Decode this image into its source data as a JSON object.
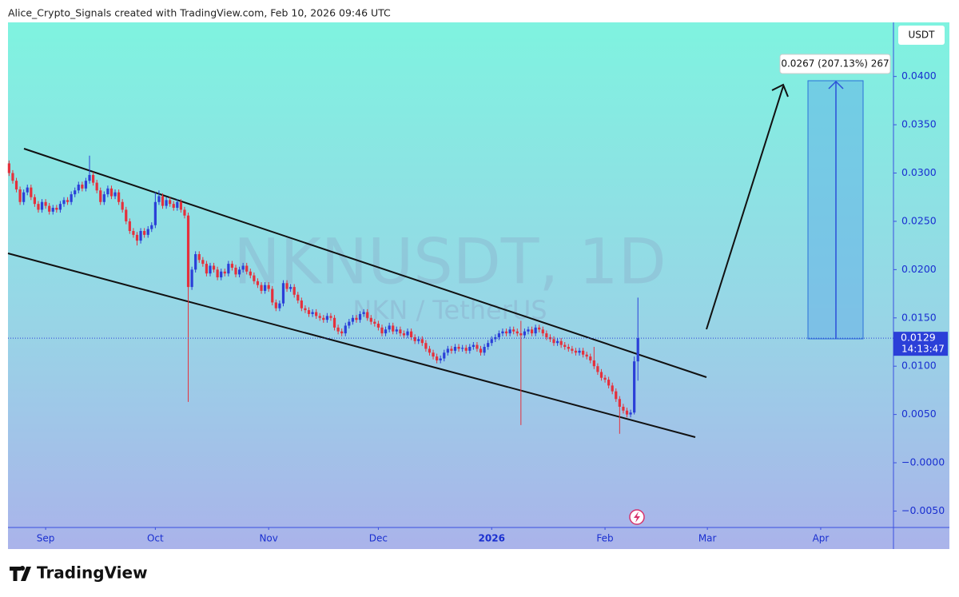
{
  "chart_data": {
    "type": "candlestick",
    "title": "Alice_Crypto_Signals created with TradingView.com, Feb 10, 2026 09:46 UTC",
    "watermark": "NKNUSDT, 1D",
    "watermark_subtitle": "NKN / TetherUS",
    "currency": "USDT",
    "countdown": "14:13:47",
    "measure_label": "0.0267 (207.13%) 267",
    "logo": "TradingView",
    "up_color": "#2b3fd8",
    "down_color": "#e5303c",
    "ylim": [
      -0.0067,
      0.0456
    ],
    "yticks": [
      {
        "value": -0.005,
        "label": "−0.0050"
      },
      {
        "value": 0,
        "label": "−0.0000"
      },
      {
        "value": 0.005,
        "label": "0.0050"
      },
      {
        "value": 0.01,
        "label": "0.0100"
      },
      {
        "value": 0.015,
        "label": "0.0150"
      },
      {
        "value": 0.02,
        "label": "0.0200"
      },
      {
        "value": 0.025,
        "label": "0.0250"
      },
      {
        "value": 0.03,
        "label": "0.0300"
      },
      {
        "value": 0.035,
        "label": "0.0350"
      },
      {
        "value": 0.04,
        "label": "0.0400"
      }
    ],
    "xlim": [
      -10.3,
      231.9
    ],
    "xticks": [
      {
        "value": 0,
        "label": "Sep"
      },
      {
        "value": 30,
        "label": "Oct"
      },
      {
        "value": 61,
        "label": "Nov"
      },
      {
        "value": 91,
        "label": "Dec"
      },
      {
        "value": 122,
        "label": "2026"
      },
      {
        "value": 153,
        "label": "Feb"
      },
      {
        "value": 181,
        "label": "Mar"
      },
      {
        "value": 212,
        "label": "Apr"
      }
    ],
    "x": [
      -10,
      -9,
      -8,
      -7,
      -6,
      -5,
      -4,
      -3,
      -2,
      -1,
      0,
      1,
      2,
      3,
      4,
      5,
      6,
      7,
      8,
      9,
      10,
      11,
      12,
      13,
      14,
      15,
      16,
      17,
      18,
      19,
      20,
      21,
      22,
      23,
      24,
      25,
      26,
      27,
      28,
      29,
      30,
      31,
      32,
      33,
      34,
      35,
      36,
      37,
      38,
      39,
      40,
      41,
      42,
      43,
      44,
      45,
      46,
      47,
      48,
      49,
      50,
      51,
      52,
      53,
      54,
      55,
      56,
      57,
      58,
      59,
      60,
      61,
      62,
      63,
      64,
      65,
      66,
      67,
      68,
      69,
      70,
      71,
      72,
      73,
      74,
      75,
      76,
      77,
      78,
      79,
      80,
      81,
      82,
      83,
      84,
      85,
      86,
      87,
      88,
      89,
      90,
      91,
      92,
      93,
      94,
      95,
      96,
      97,
      98,
      99,
      100,
      101,
      102,
      103,
      104,
      105,
      106,
      107,
      108,
      109,
      110,
      111,
      112,
      113,
      114,
      115,
      116,
      117,
      118,
      119,
      120,
      121,
      122,
      123,
      124,
      125,
      126,
      127,
      128,
      129,
      130,
      131,
      132,
      133,
      134,
      135,
      136,
      137,
      138,
      139,
      140,
      141,
      142,
      143,
      144,
      145,
      146,
      147,
      148,
      149,
      150,
      151,
      152,
      153,
      154,
      155,
      156,
      157,
      158,
      159,
      160,
      161,
      162
    ],
    "ohlc": [
      [
        0.031,
        0.0313,
        0.0297,
        0.03
      ],
      [
        0.03,
        0.0303,
        0.0289,
        0.0292
      ],
      [
        0.0292,
        0.0295,
        0.028,
        0.0283
      ],
      [
        0.0283,
        0.0286,
        0.0267,
        0.027
      ],
      [
        0.027,
        0.0283,
        0.0267,
        0.028
      ],
      [
        0.028,
        0.0288,
        0.0277,
        0.0285
      ],
      [
        0.0285,
        0.0288,
        0.0272,
        0.0275
      ],
      [
        0.0275,
        0.0278,
        0.0265,
        0.0268
      ],
      [
        0.0268,
        0.0271,
        0.0259,
        0.0262
      ],
      [
        0.0262,
        0.0273,
        0.0259,
        0.027
      ],
      [
        0.027,
        0.0273,
        0.0263,
        0.0266
      ],
      [
        0.0266,
        0.0269,
        0.0257,
        0.026
      ],
      [
        0.026,
        0.0267,
        0.0257,
        0.0264
      ],
      [
        0.0264,
        0.0267,
        0.0259,
        0.0262
      ],
      [
        0.0262,
        0.0271,
        0.0259,
        0.0268
      ],
      [
        0.0268,
        0.0275,
        0.0265,
        0.0272
      ],
      [
        0.0272,
        0.0275,
        0.0267,
        0.027
      ],
      [
        0.027,
        0.0281,
        0.0267,
        0.0278
      ],
      [
        0.0278,
        0.0285,
        0.0275,
        0.0282
      ],
      [
        0.0282,
        0.0291,
        0.0279,
        0.0288
      ],
      [
        0.0288,
        0.0291,
        0.0281,
        0.0284
      ],
      [
        0.0284,
        0.0295,
        0.0281,
        0.0292
      ],
      [
        0.0292,
        0.0318,
        0.0289,
        0.0298
      ],
      [
        0.0298,
        0.0301,
        0.0287,
        0.029
      ],
      [
        0.029,
        0.0293,
        0.0279,
        0.0282
      ],
      [
        0.0282,
        0.0285,
        0.0267,
        0.027
      ],
      [
        0.027,
        0.0281,
        0.0267,
        0.0278
      ],
      [
        0.0278,
        0.0287,
        0.0275,
        0.0284
      ],
      [
        0.0284,
        0.0287,
        0.0273,
        0.0276
      ],
      [
        0.0276,
        0.0283,
        0.0273,
        0.028
      ],
      [
        0.028,
        0.0283,
        0.0267,
        0.027
      ],
      [
        0.027,
        0.0273,
        0.0259,
        0.0262
      ],
      [
        0.0262,
        0.0265,
        0.0247,
        0.025
      ],
      [
        0.025,
        0.0253,
        0.0237,
        0.024
      ],
      [
        0.024,
        0.0243,
        0.0233,
        0.0236
      ],
      [
        0.0236,
        0.0239,
        0.0225,
        0.023
      ],
      [
        0.023,
        0.0243,
        0.0227,
        0.024
      ],
      [
        0.024,
        0.0243,
        0.0233,
        0.0236
      ],
      [
        0.0236,
        0.0245,
        0.0233,
        0.0242
      ],
      [
        0.0242,
        0.0249,
        0.0239,
        0.0246
      ],
      [
        0.0246,
        0.028,
        0.0243,
        0.027
      ],
      [
        0.027,
        0.0282,
        0.0267,
        0.0276
      ],
      [
        0.0276,
        0.0279,
        0.0263,
        0.0266
      ],
      [
        0.0266,
        0.0275,
        0.0263,
        0.0272
      ],
      [
        0.0272,
        0.0275,
        0.0265,
        0.0268
      ],
      [
        0.0268,
        0.0271,
        0.0261,
        0.0264
      ],
      [
        0.0264,
        0.0273,
        0.0261,
        0.027
      ],
      [
        0.027,
        0.0273,
        0.0259,
        0.0262
      ],
      [
        0.0262,
        0.0265,
        0.0253,
        0.0256
      ],
      [
        0.0256,
        0.0259,
        0.0063,
        0.0182
      ],
      [
        0.0182,
        0.0203,
        0.0179,
        0.02
      ],
      [
        0.02,
        0.0219,
        0.0197,
        0.0216
      ],
      [
        0.0216,
        0.0219,
        0.0207,
        0.021
      ],
      [
        0.021,
        0.0213,
        0.0203,
        0.0206
      ],
      [
        0.0206,
        0.0209,
        0.0193,
        0.0196
      ],
      [
        0.0196,
        0.0207,
        0.0193,
        0.0204
      ],
      [
        0.0204,
        0.0207,
        0.0197,
        0.02
      ],
      [
        0.02,
        0.0203,
        0.0189,
        0.0192
      ],
      [
        0.0192,
        0.0201,
        0.0189,
        0.0198
      ],
      [
        0.0198,
        0.0201,
        0.0193,
        0.0196
      ],
      [
        0.0196,
        0.0209,
        0.0193,
        0.0206
      ],
      [
        0.0206,
        0.0209,
        0.0199,
        0.0202
      ],
      [
        0.0202,
        0.0205,
        0.0192,
        0.0195
      ],
      [
        0.0195,
        0.0203,
        0.0192,
        0.02
      ],
      [
        0.02,
        0.0207,
        0.0197,
        0.0204
      ],
      [
        0.0204,
        0.0207,
        0.0195,
        0.0198
      ],
      [
        0.0198,
        0.0201,
        0.0191,
        0.0194
      ],
      [
        0.0194,
        0.0197,
        0.0185,
        0.0188
      ],
      [
        0.0188,
        0.0191,
        0.0181,
        0.0184
      ],
      [
        0.0184,
        0.0187,
        0.0175,
        0.0178
      ],
      [
        0.0178,
        0.0187,
        0.0175,
        0.0184
      ],
      [
        0.0184,
        0.0187,
        0.0177,
        0.018
      ],
      [
        0.018,
        0.0183,
        0.0163,
        0.0166
      ],
      [
        0.0166,
        0.0169,
        0.0157,
        0.016
      ],
      [
        0.016,
        0.0168,
        0.0157,
        0.0165
      ],
      [
        0.0165,
        0.0189,
        0.0162,
        0.0186
      ],
      [
        0.0186,
        0.0189,
        0.0177,
        0.018
      ],
      [
        0.018,
        0.0185,
        0.0177,
        0.0182
      ],
      [
        0.0182,
        0.0185,
        0.0171,
        0.0174
      ],
      [
        0.0174,
        0.0177,
        0.0165,
        0.0168
      ],
      [
        0.0168,
        0.0171,
        0.0157,
        0.016
      ],
      [
        0.016,
        0.0163,
        0.0155,
        0.0158
      ],
      [
        0.0158,
        0.0161,
        0.0151,
        0.0154
      ],
      [
        0.0154,
        0.0159,
        0.0151,
        0.0156
      ],
      [
        0.0156,
        0.0159,
        0.0149,
        0.0152
      ],
      [
        0.0152,
        0.0155,
        0.0147,
        0.015
      ],
      [
        0.015,
        0.0153,
        0.0145,
        0.0148
      ],
      [
        0.0148,
        0.0155,
        0.0145,
        0.0152
      ],
      [
        0.0152,
        0.0155,
        0.0147,
        0.015
      ],
      [
        0.015,
        0.0153,
        0.0137,
        0.014
      ],
      [
        0.014,
        0.0143,
        0.0133,
        0.0136
      ],
      [
        0.0136,
        0.0139,
        0.0131,
        0.0134
      ],
      [
        0.0134,
        0.0145,
        0.0131,
        0.0142
      ],
      [
        0.0142,
        0.0149,
        0.0139,
        0.0146
      ],
      [
        0.0146,
        0.0153,
        0.0143,
        0.015
      ],
      [
        0.015,
        0.0153,
        0.0145,
        0.0148
      ],
      [
        0.0148,
        0.0157,
        0.0145,
        0.0154
      ],
      [
        0.0154,
        0.0159,
        0.0151,
        0.0156
      ],
      [
        0.0156,
        0.0159,
        0.0147,
        0.015
      ],
      [
        0.015,
        0.0153,
        0.0143,
        0.0146
      ],
      [
        0.0146,
        0.0149,
        0.0141,
        0.0144
      ],
      [
        0.0144,
        0.0147,
        0.0137,
        0.014
      ],
      [
        0.014,
        0.0143,
        0.0131,
        0.0134
      ],
      [
        0.0134,
        0.0141,
        0.0131,
        0.0138
      ],
      [
        0.0138,
        0.0145,
        0.0135,
        0.0142
      ],
      [
        0.0142,
        0.0145,
        0.0133,
        0.0136
      ],
      [
        0.0136,
        0.0141,
        0.0133,
        0.0138
      ],
      [
        0.0138,
        0.0141,
        0.0131,
        0.0134
      ],
      [
        0.0134,
        0.0137,
        0.0129,
        0.0132
      ],
      [
        0.0132,
        0.0139,
        0.0129,
        0.0136
      ],
      [
        0.0136,
        0.0139,
        0.0127,
        0.013
      ],
      [
        0.013,
        0.0133,
        0.0123,
        0.0126
      ],
      [
        0.0126,
        0.0131,
        0.0123,
        0.0128
      ],
      [
        0.0128,
        0.0131,
        0.0121,
        0.0124
      ],
      [
        0.0124,
        0.0127,
        0.0115,
        0.0118
      ],
      [
        0.0118,
        0.0121,
        0.0111,
        0.0114
      ],
      [
        0.0114,
        0.0117,
        0.0107,
        0.011
      ],
      [
        0.011,
        0.0113,
        0.0103,
        0.0106
      ],
      [
        0.0106,
        0.0111,
        0.0103,
        0.0108
      ],
      [
        0.0108,
        0.0117,
        0.0105,
        0.0114
      ],
      [
        0.0114,
        0.0121,
        0.0111,
        0.0118
      ],
      [
        0.0118,
        0.0121,
        0.0113,
        0.0116
      ],
      [
        0.0116,
        0.0123,
        0.0113,
        0.012
      ],
      [
        0.012,
        0.0123,
        0.0115,
        0.0118
      ],
      [
        0.0118,
        0.0122,
        0.0115,
        0.0119
      ],
      [
        0.0119,
        0.0122,
        0.0113,
        0.0116
      ],
      [
        0.0116,
        0.0123,
        0.0113,
        0.012
      ],
      [
        0.012,
        0.0125,
        0.0117,
        0.0122
      ],
      [
        0.0122,
        0.0125,
        0.0115,
        0.0118
      ],
      [
        0.0118,
        0.0121,
        0.0111,
        0.0114
      ],
      [
        0.0114,
        0.0123,
        0.0111,
        0.012
      ],
      [
        0.012,
        0.0127,
        0.0117,
        0.0124
      ],
      [
        0.0124,
        0.0131,
        0.0121,
        0.0128
      ],
      [
        0.0128,
        0.0133,
        0.0125,
        0.013
      ],
      [
        0.013,
        0.0137,
        0.0127,
        0.0134
      ],
      [
        0.0134,
        0.0139,
        0.0131,
        0.0136
      ],
      [
        0.0136,
        0.0139,
        0.0131,
        0.0134
      ],
      [
        0.0134,
        0.0141,
        0.0131,
        0.0138
      ],
      [
        0.0138,
        0.0141,
        0.0133,
        0.0136
      ],
      [
        0.0136,
        0.0139,
        0.0131,
        0.0134
      ],
      [
        0.0134,
        0.0147,
        0.0039,
        0.0132
      ],
      [
        0.0132,
        0.0139,
        0.0129,
        0.0136
      ],
      [
        0.0136,
        0.0141,
        0.0133,
        0.0138
      ],
      [
        0.0138,
        0.0141,
        0.0131,
        0.0134
      ],
      [
        0.0134,
        0.0143,
        0.0131,
        0.014
      ],
      [
        0.014,
        0.0143,
        0.0135,
        0.0138
      ],
      [
        0.0138,
        0.0141,
        0.0131,
        0.0134
      ],
      [
        0.0134,
        0.0137,
        0.0127,
        0.013
      ],
      [
        0.013,
        0.0133,
        0.0125,
        0.0128
      ],
      [
        0.0128,
        0.0131,
        0.0121,
        0.0124
      ],
      [
        0.0124,
        0.0129,
        0.0121,
        0.0126
      ],
      [
        0.0126,
        0.0129,
        0.0119,
        0.0122
      ],
      [
        0.0122,
        0.0125,
        0.0117,
        0.012
      ],
      [
        0.012,
        0.0123,
        0.0115,
        0.0118
      ],
      [
        0.0118,
        0.0121,
        0.0113,
        0.0116
      ],
      [
        0.0116,
        0.0119,
        0.0111,
        0.0114
      ],
      [
        0.0114,
        0.0119,
        0.0111,
        0.0116
      ],
      [
        0.0116,
        0.0119,
        0.0109,
        0.0112
      ],
      [
        0.0112,
        0.0115,
        0.0107,
        0.011
      ],
      [
        0.011,
        0.0113,
        0.0103,
        0.0106
      ],
      [
        0.0106,
        0.012,
        0.0097,
        0.01
      ],
      [
        0.01,
        0.0103,
        0.0091,
        0.0094
      ],
      [
        0.0094,
        0.0097,
        0.0085,
        0.0088
      ],
      [
        0.0088,
        0.0091,
        0.0083,
        0.0086
      ],
      [
        0.0086,
        0.0089,
        0.0077,
        0.008
      ],
      [
        0.008,
        0.0083,
        0.0071,
        0.0074
      ],
      [
        0.0074,
        0.0077,
        0.0063,
        0.0066
      ],
      [
        0.0066,
        0.0069,
        0.003,
        0.0058
      ],
      [
        0.0058,
        0.0061,
        0.0051,
        0.0054
      ],
      [
        0.0054,
        0.0057,
        0.0047,
        0.005
      ],
      [
        0.005,
        0.0055,
        0.0047,
        0.0052
      ],
      [
        0.0052,
        0.011,
        0.005,
        0.0105
      ],
      [
        0.0105,
        0.0171,
        0.0085,
        0.0129
      ]
    ]
  }
}
